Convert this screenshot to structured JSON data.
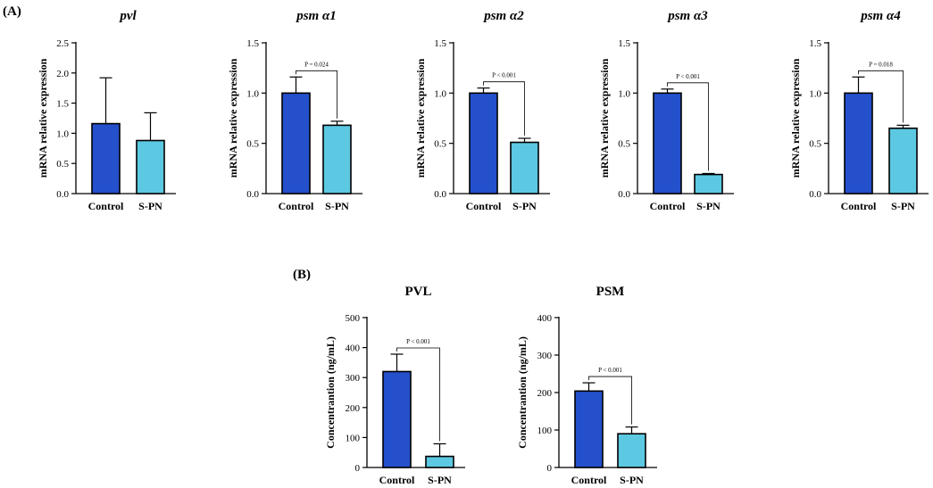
{
  "panel_labels": [
    "(A)",
    "(B)"
  ],
  "colors": {
    "control": "#2450cc",
    "spn": "#5cc8e2",
    "axis": "#000000"
  },
  "chart_data": [
    {
      "type": "bar",
      "title": "pvl",
      "title_italic": true,
      "ylabel": "mRNA relative expression",
      "categories": [
        "Control",
        "S-PN"
      ],
      "values": [
        1.16,
        0.88
      ],
      "errors": [
        0.76,
        0.46
      ],
      "ylim": [
        0,
        2.5
      ],
      "yticks": [
        "0.0",
        "0.5",
        "1.0",
        "1.5",
        "2.0",
        "2.5"
      ],
      "pvalue": ""
    },
    {
      "type": "bar",
      "title": "psm α1",
      "title_italic": true,
      "ylabel": "mRNA relative expression",
      "categories": [
        "Control",
        "S-PN"
      ],
      "values": [
        1.0,
        0.68
      ],
      "errors": [
        0.16,
        0.04
      ],
      "ylim": [
        0,
        1.5
      ],
      "yticks": [
        "0.0",
        "0.5",
        "1.0",
        "1.5"
      ],
      "pvalue": "P = 0.024"
    },
    {
      "type": "bar",
      "title": "psm α2",
      "title_italic": true,
      "ylabel": "mRNA relative expression",
      "categories": [
        "Control",
        "S-PN"
      ],
      "values": [
        1.0,
        0.51
      ],
      "errors": [
        0.05,
        0.04
      ],
      "ylim": [
        0,
        1.5
      ],
      "yticks": [
        "0.0",
        "0.5",
        "1.0",
        "1.5"
      ],
      "pvalue": "P < 0.001"
    },
    {
      "type": "bar",
      "title": "psm α3",
      "title_italic": true,
      "ylabel": "mRNA relative expression",
      "categories": [
        "Control",
        "S-PN"
      ],
      "values": [
        1.0,
        0.19
      ],
      "errors": [
        0.04,
        0.01
      ],
      "ylim": [
        0,
        1.5
      ],
      "yticks": [
        "0.0",
        "0.5",
        "1.0",
        "1.5"
      ],
      "pvalue": "P < 0.001"
    },
    {
      "type": "bar",
      "title": "psm α4",
      "title_italic": true,
      "ylabel": "mRNA relative expression",
      "categories": [
        "Control",
        "S-PN"
      ],
      "values": [
        1.0,
        0.65
      ],
      "errors": [
        0.16,
        0.03
      ],
      "ylim": [
        0,
        1.5
      ],
      "yticks": [
        "0.0",
        "0.5",
        "1.0",
        "1.5"
      ],
      "pvalue": "P = 0.018"
    },
    {
      "type": "bar",
      "title": "PVL",
      "title_italic": false,
      "ylabel": "Concentrantion (ng/mL)",
      "categories": [
        "Control",
        "S-PN"
      ],
      "values": [
        320,
        37
      ],
      "errors": [
        58,
        42
      ],
      "ylim": [
        0,
        500
      ],
      "yticks": [
        "0",
        "100",
        "200",
        "300",
        "400",
        "500"
      ],
      "pvalue": "P < 0.001"
    },
    {
      "type": "bar",
      "title": "PSM",
      "title_italic": false,
      "ylabel": "Concentrantion (ng/mL)",
      "categories": [
        "Control",
        "S-PN"
      ],
      "values": [
        204,
        90
      ],
      "errors": [
        22,
        18
      ],
      "ylim": [
        0,
        400
      ],
      "yticks": [
        "0",
        "100",
        "200",
        "300",
        "400"
      ],
      "pvalue": "P < 0.001"
    }
  ]
}
